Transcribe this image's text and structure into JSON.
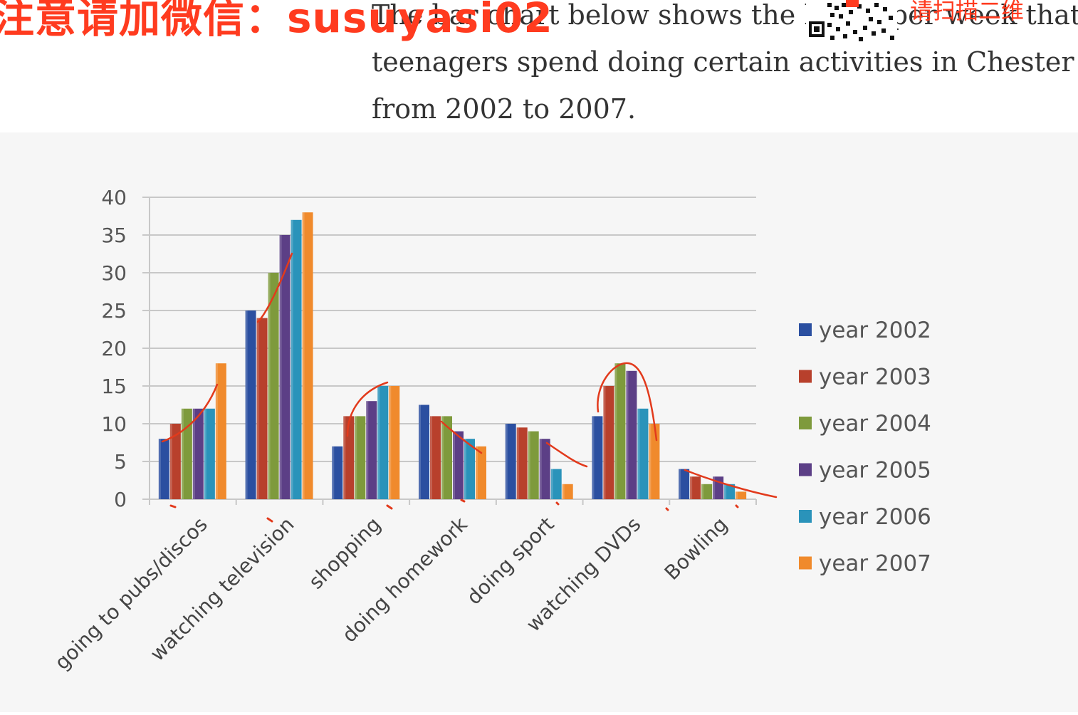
{
  "prompt": {
    "line1": "The bar chart below shows the hours per week that",
    "line2": "teenagers spend doing certain activities in Chester",
    "line3": "from 2002 to 2007."
  },
  "watermark": {
    "left": "注意请加微信：susuyasi02",
    "right": "请扫描二维",
    "color": "#ff3b1f"
  },
  "chart_data": {
    "type": "bar",
    "categories": [
      "going to pubs/discos",
      "watching television",
      "shopping",
      "doing homework",
      "doing sport",
      "watching DVDs",
      "Bowling"
    ],
    "series": [
      {
        "name": "year 2002",
        "color": "#2b4fa0",
        "values": [
          8,
          25,
          7,
          12.5,
          10,
          11,
          4
        ]
      },
      {
        "name": "year 2003",
        "color": "#b8402c",
        "values": [
          10,
          24,
          11,
          11,
          9.5,
          15,
          3
        ]
      },
      {
        "name": "year 2004",
        "color": "#7e9a3c",
        "values": [
          12,
          30,
          11,
          11,
          9,
          18,
          2
        ]
      },
      {
        "name": "year 2005",
        "color": "#5c3f86",
        "values": [
          12,
          35,
          13,
          9,
          8,
          17,
          3
        ]
      },
      {
        "name": "year 2006",
        "color": "#2a93ba",
        "values": [
          12,
          37,
          15,
          8,
          4,
          12,
          2
        ]
      },
      {
        "name": "year 2007",
        "color": "#f08a2c",
        "values": [
          18,
          38,
          15,
          7,
          2,
          10,
          1
        ]
      }
    ],
    "yticks": [
      0,
      5,
      10,
      15,
      20,
      25,
      30,
      35,
      40
    ],
    "ylim": [
      0,
      40
    ],
    "grid": true,
    "legend": "right",
    "xlabel": "",
    "ylabel": ""
  }
}
